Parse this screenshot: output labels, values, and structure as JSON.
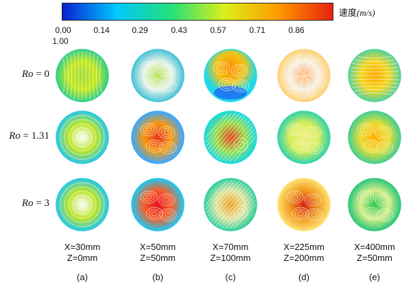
{
  "colorbar": {
    "title": "速度",
    "unit": "(m/s)",
    "ticks": [
      "0.00",
      "0.14",
      "0.29",
      "0.43",
      "0.57",
      "0.71",
      "0.86"
    ],
    "max_label": "1.00",
    "colors": [
      "#0a1fd0",
      "#00c8ff",
      "#22e07a",
      "#dcef1a",
      "#ff9a00",
      "#e8200e"
    ]
  },
  "rows": [
    {
      "label_var": "Ro",
      "label_val": "= 0"
    },
    {
      "label_var": "Ro",
      "label_val": "= 1.31"
    },
    {
      "label_var": "Ro",
      "label_val": "= 3"
    }
  ],
  "columns": [
    {
      "x": "X=30mm",
      "z": "Z=0mm",
      "letter": "(a)"
    },
    {
      "x": "X=50mm",
      "z": "Z=50mm",
      "letter": "(b)"
    },
    {
      "x": "X=70mm",
      "z": "Z=100mm",
      "letter": "(c)"
    },
    {
      "x": "X=225mm",
      "z": "Z=200mm",
      "letter": "(d)"
    },
    {
      "x": "X=400mm",
      "z": "Z=50mm",
      "letter": "(e)"
    }
  ],
  "panels": [
    [
      {
        "fill": "#c6e81c",
        "edge": "#35d08a",
        "hot": "#9fdc3a",
        "style": "vertical"
      },
      {
        "fill": "#e8f4e8",
        "edge": "#4ac3d8",
        "hot": "#b8e45a",
        "style": "swirl"
      },
      {
        "fill": "#f0c418",
        "edge": "#1fd8e8",
        "hot": "#ff8a00",
        "style": "bottomblue"
      },
      {
        "fill": "#f7f3e6",
        "edge": "#ffd27a",
        "hot": "#ffb070",
        "style": "sparse"
      },
      {
        "fill": "#f2d722",
        "edge": "#58d29c",
        "hot": "#ffa800",
        "style": "horizontal"
      }
    ],
    [
      {
        "fill": "#b9e427",
        "edge": "#28c8e6",
        "hot": "#ffffff",
        "style": "rings"
      },
      {
        "fill": "#f59a10",
        "edge": "#3aa8ff",
        "hot": "#e8361a",
        "style": "swirl"
      },
      {
        "fill": "#9bdd45",
        "edge": "#1bd9e0",
        "hot": "#e8401a",
        "style": "diag"
      },
      {
        "fill": "#d8ee5a",
        "edge": "#35d4a8",
        "hot": "#f0f080",
        "style": "swirl"
      },
      {
        "fill": "#e9de32",
        "edge": "#48cf90",
        "hot": "#ffb000",
        "style": "swirl"
      }
    ],
    [
      {
        "fill": "#b9e427",
        "edge": "#28c8e6",
        "hot": "#ffffff",
        "style": "rings"
      },
      {
        "fill": "#f3602a",
        "edge": "#22c7f0",
        "hot": "#e8101a",
        "style": "swirl"
      },
      {
        "fill": "#e0e6a0",
        "edge": "#33d0a0",
        "hot": "#f0a020",
        "style": "diag"
      },
      {
        "fill": "#f09a20",
        "edge": "#ffe070",
        "hot": "#d82010",
        "style": "swirl"
      },
      {
        "fill": "#d6ee88",
        "edge": "#30c87a",
        "hot": "#2cc850",
        "style": "swirl"
      }
    ]
  ]
}
